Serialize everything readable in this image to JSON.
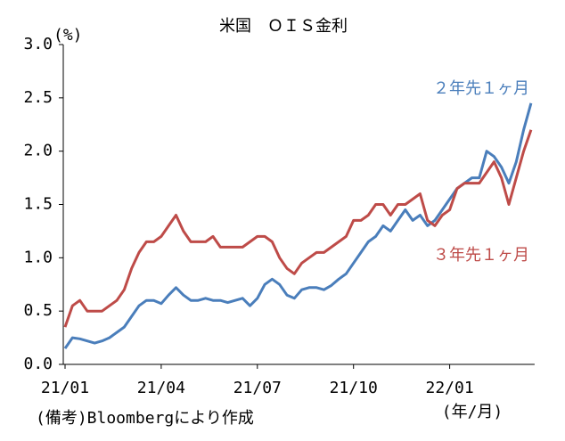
{
  "chart_data": {
    "type": "line",
    "title": "米国　ＯＩＳ金利",
    "y_unit": "(%)",
    "x_unit": "(年/月)",
    "source": "(備考)Bloombergにより作成",
    "categories": [
      "21/01",
      null,
      null,
      null,
      null,
      null,
      null,
      null,
      null,
      null,
      null,
      null,
      null,
      "21/04",
      null,
      null,
      null,
      null,
      null,
      null,
      null,
      null,
      null,
      null,
      null,
      null,
      "21/07",
      null,
      null,
      null,
      null,
      null,
      null,
      null,
      null,
      null,
      null,
      null,
      null,
      "21/10",
      null,
      null,
      null,
      null,
      null,
      null,
      null,
      null,
      null,
      null,
      null,
      null,
      "22/01",
      null,
      null,
      null,
      null,
      null,
      null,
      null,
      null,
      null,
      null,
      null
    ],
    "series": [
      {
        "name": "２年先１ヶ月",
        "color": "#4a7ebb",
        "values": [
          0.15,
          0.25,
          0.24,
          0.22,
          0.2,
          0.22,
          0.25,
          0.3,
          0.35,
          0.45,
          0.55,
          0.6,
          0.6,
          0.57,
          0.65,
          0.72,
          0.65,
          0.6,
          0.6,
          0.62,
          0.6,
          0.6,
          0.58,
          0.6,
          0.62,
          0.55,
          0.62,
          0.75,
          0.8,
          0.75,
          0.65,
          0.62,
          0.7,
          0.72,
          0.72,
          0.7,
          0.74,
          0.8,
          0.85,
          0.95,
          1.05,
          1.15,
          1.2,
          1.3,
          1.25,
          1.35,
          1.45,
          1.35,
          1.4,
          1.3,
          1.35,
          1.45,
          1.55,
          1.65,
          1.7,
          1.75,
          1.75,
          2.0,
          1.95,
          1.85,
          1.7,
          1.9,
          2.2,
          2.45
        ]
      },
      {
        "name": "３年先１ヶ月",
        "color": "#be4b48",
        "values": [
          0.35,
          0.55,
          0.6,
          0.5,
          0.5,
          0.5,
          0.55,
          0.6,
          0.7,
          0.9,
          1.05,
          1.15,
          1.15,
          1.2,
          1.3,
          1.4,
          1.25,
          1.15,
          1.15,
          1.15,
          1.2,
          1.1,
          1.1,
          1.1,
          1.1,
          1.15,
          1.2,
          1.2,
          1.15,
          1.0,
          0.9,
          0.85,
          0.95,
          1.0,
          1.05,
          1.05,
          1.1,
          1.15,
          1.2,
          1.35,
          1.35,
          1.4,
          1.5,
          1.5,
          1.4,
          1.5,
          1.5,
          1.55,
          1.6,
          1.35,
          1.3,
          1.4,
          1.45,
          1.65,
          1.7,
          1.7,
          1.7,
          1.8,
          1.9,
          1.75,
          1.5,
          1.75,
          2.0,
          2.2
        ]
      }
    ],
    "ylim": [
      0,
      3
    ],
    "yticks": [
      {
        "value": 0,
        "label": "0.0"
      },
      0.5,
      {
        "value": 1,
        "label": "1.0"
      },
      1.5,
      {
        "value": 2,
        "label": "2.0"
      },
      2.5,
      {
        "value": 3,
        "label": "3.0"
      }
    ]
  }
}
